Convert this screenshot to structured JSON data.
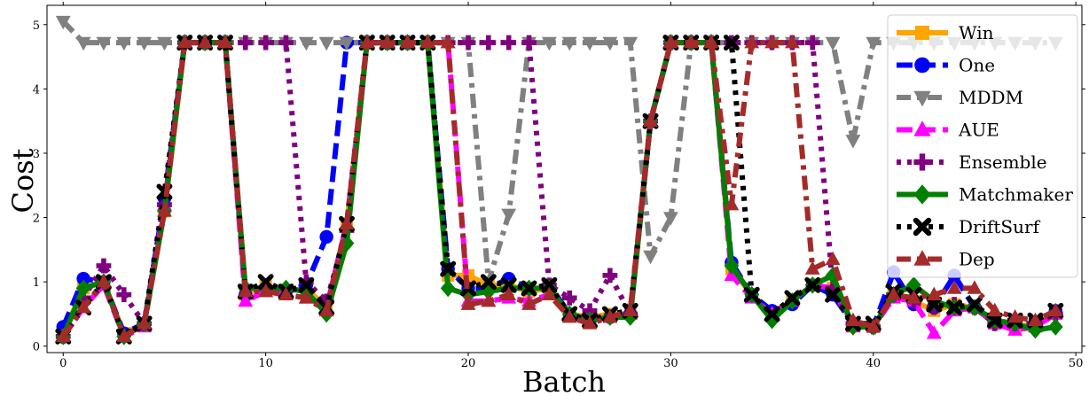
{
  "chart_data": {
    "type": "line",
    "title": "",
    "xlabel": "Batch",
    "ylabel": "Cost",
    "xlim": [
      -0.8,
      50.3
    ],
    "ylim": [
      -0.1,
      5.3
    ],
    "xticks": [
      0,
      10,
      20,
      30,
      40,
      50
    ],
    "yticks": [
      0,
      1,
      2,
      3,
      4,
      5
    ],
    "grid": false,
    "legend_position": "top-right",
    "x": [
      0,
      1,
      2,
      3,
      4,
      5,
      6,
      7,
      8,
      9,
      10,
      11,
      12,
      13,
      14,
      15,
      16,
      17,
      18,
      19,
      20,
      21,
      22,
      23,
      24,
      25,
      26,
      27,
      28,
      29,
      30,
      31,
      32,
      33,
      34,
      35,
      36,
      37,
      38,
      39,
      40,
      41,
      42,
      43,
      44,
      45,
      46,
      47,
      48,
      49
    ],
    "series": [
      {
        "name": "Win",
        "color": "#ffa500",
        "dash": "solid",
        "marker": "square",
        "values": [
          0.2,
          0.9,
          1.0,
          0.2,
          0.35,
          2.1,
          4.72,
          4.72,
          4.72,
          0.8,
          0.95,
          0.85,
          0.9,
          0.6,
          1.9,
          4.72,
          4.72,
          4.72,
          4.72,
          1.1,
          1.1,
          0.95,
          0.95,
          0.85,
          0.9,
          0.5,
          0.45,
          0.5,
          0.5,
          3.5,
          4.72,
          4.72,
          4.72,
          1.2,
          0.8,
          0.5,
          0.7,
          0.95,
          0.9,
          0.35,
          0.3,
          0.8,
          0.7,
          0.55,
          0.65,
          0.6,
          0.35,
          0.3,
          0.35,
          0.5
        ]
      },
      {
        "name": "One",
        "color": "#0000ff",
        "dash": "dashed",
        "marker": "circle",
        "values": [
          0.3,
          1.05,
          1.0,
          0.2,
          0.35,
          2.3,
          4.72,
          4.72,
          4.72,
          0.8,
          0.9,
          0.85,
          0.95,
          1.7,
          4.72,
          4.72,
          4.72,
          4.72,
          4.72,
          1.2,
          0.9,
          0.9,
          1.05,
          0.9,
          0.95,
          0.5,
          0.4,
          0.45,
          0.5,
          3.5,
          4.72,
          4.72,
          4.72,
          1.3,
          0.8,
          0.55,
          0.65,
          0.95,
          0.8,
          0.35,
          0.3,
          1.15,
          0.65,
          0.6,
          1.1,
          0.6,
          0.4,
          0.35,
          0.35,
          0.55
        ]
      },
      {
        "name": "MDDM",
        "color": "#808080",
        "dash": "dashdot",
        "marker": "triangle-down",
        "values": [
          5.05,
          4.72,
          4.72,
          4.72,
          4.72,
          4.72,
          4.72,
          4.72,
          4.72,
          4.72,
          4.72,
          4.72,
          4.72,
          4.72,
          4.72,
          4.72,
          4.72,
          4.72,
          4.72,
          4.72,
          4.72,
          1.0,
          2.05,
          4.72,
          4.72,
          4.72,
          4.72,
          4.72,
          4.72,
          1.4,
          2.0,
          4.72,
          4.72,
          4.72,
          4.72,
          4.72,
          4.72,
          4.72,
          4.72,
          3.2,
          4.72,
          4.72,
          4.72,
          4.72,
          4.72,
          4.72,
          4.72,
          4.72,
          4.72,
          4.72
        ]
      },
      {
        "name": "AUE",
        "color": "#ff00ff",
        "dash": "dashed",
        "marker": "triangle-up",
        "values": [
          0.15,
          0.6,
          0.95,
          0.15,
          0.3,
          2.2,
          4.72,
          4.72,
          4.72,
          0.7,
          0.85,
          0.8,
          0.75,
          0.6,
          1.9,
          4.72,
          4.72,
          4.72,
          4.72,
          4.72,
          0.7,
          0.7,
          0.75,
          0.7,
          0.8,
          0.5,
          0.4,
          0.45,
          0.5,
          3.5,
          4.72,
          4.72,
          4.72,
          1.1,
          0.75,
          0.5,
          0.7,
          0.95,
          0.9,
          0.3,
          0.3,
          0.75,
          0.7,
          0.2,
          0.55,
          0.6,
          0.35,
          0.25,
          0.3,
          0.5
        ]
      },
      {
        "name": "Ensemble",
        "color": "#800080",
        "dash": "dotted",
        "marker": "plus",
        "values": [
          0.15,
          0.75,
          1.25,
          0.8,
          0.35,
          2.2,
          4.72,
          4.72,
          4.72,
          4.72,
          4.72,
          4.72,
          1.0,
          0.7,
          1.8,
          4.72,
          4.72,
          4.72,
          4.72,
          4.72,
          4.72,
          4.72,
          4.72,
          4.72,
          0.95,
          0.75,
          0.55,
          1.1,
          0.5,
          3.5,
          4.72,
          4.72,
          4.72,
          4.72,
          4.72,
          4.72,
          4.72,
          4.72,
          0.9,
          0.35,
          0.3,
          0.8,
          0.7,
          0.6,
          0.65,
          0.6,
          0.35,
          0.35,
          0.35,
          0.5
        ]
      },
      {
        "name": "Matchmaker",
        "color": "#008000",
        "dash": "solid",
        "marker": "diamond",
        "values": [
          0.15,
          0.9,
          1.0,
          0.15,
          0.35,
          2.1,
          4.72,
          4.72,
          4.72,
          0.9,
          0.9,
          0.9,
          0.85,
          0.5,
          1.6,
          4.72,
          4.72,
          4.72,
          4.72,
          0.9,
          0.8,
          0.85,
          0.9,
          0.9,
          0.9,
          0.5,
          0.4,
          0.45,
          0.45,
          3.5,
          4.72,
          4.72,
          4.72,
          1.25,
          0.8,
          0.4,
          0.7,
          0.95,
          1.1,
          0.3,
          0.3,
          0.8,
          0.95,
          0.7,
          0.6,
          0.6,
          0.4,
          0.35,
          0.25,
          0.3
        ]
      },
      {
        "name": "DriftSurf",
        "color": "#000000",
        "dash": "dotted",
        "marker": "x",
        "values": [
          0.15,
          0.6,
          1.0,
          0.15,
          0.35,
          2.4,
          4.72,
          4.72,
          4.72,
          0.85,
          1.0,
          0.85,
          0.95,
          0.6,
          1.9,
          4.72,
          4.72,
          4.72,
          4.72,
          1.2,
          0.9,
          1.0,
          0.95,
          0.9,
          0.95,
          0.5,
          0.4,
          0.5,
          0.55,
          3.5,
          4.72,
          4.72,
          4.72,
          4.72,
          0.8,
          0.5,
          0.75,
          0.95,
          0.8,
          0.35,
          0.35,
          0.85,
          0.8,
          0.65,
          0.6,
          0.65,
          0.4,
          0.4,
          0.4,
          0.55
        ]
      },
      {
        "name": "Dep",
        "color": "#a52a2a",
        "dash": "dashdot",
        "marker": "triangle-up",
        "values": [
          0.15,
          0.6,
          1.0,
          0.15,
          0.35,
          2.1,
          4.72,
          4.72,
          4.72,
          0.85,
          0.85,
          0.8,
          0.75,
          0.55,
          1.9,
          4.72,
          4.72,
          4.72,
          4.72,
          4.72,
          0.65,
          0.7,
          0.8,
          0.65,
          0.8,
          0.45,
          0.35,
          0.45,
          0.55,
          3.5,
          4.72,
          4.72,
          4.72,
          2.2,
          4.72,
          4.72,
          4.72,
          1.2,
          1.35,
          0.4,
          0.3,
          0.8,
          0.75,
          0.8,
          0.9,
          0.9,
          0.55,
          0.45,
          0.4,
          0.55
        ]
      }
    ]
  }
}
